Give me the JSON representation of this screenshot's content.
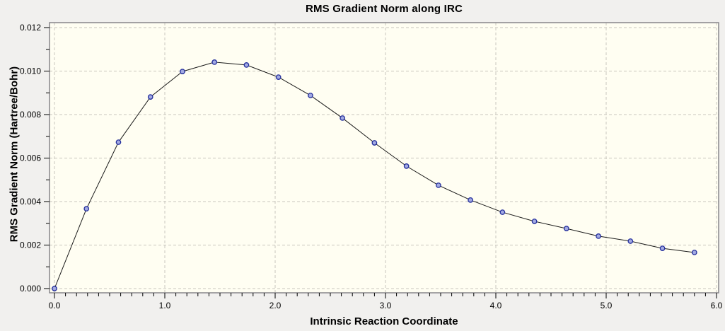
{
  "window": {
    "background": "#F1F0EE"
  },
  "chart_data": {
    "type": "line",
    "title": "RMS Gradient Norm along IRC",
    "xlabel": "Intrinsic Reaction Coordinate",
    "ylabel": "RMS Gradient Norm (Hartree/Bohr)",
    "legend": "none",
    "grid": "dashed-on-major-ticks",
    "marker": "circle",
    "xlim": [
      0.0,
      6.0
    ],
    "ylim": [
      0.0,
      0.012
    ],
    "x_tick_values": [
      0,
      1,
      2,
      3,
      4,
      5,
      6
    ],
    "x_tick_labels": [
      "0.0",
      "1.0",
      "2.0",
      "3.0",
      "4.0",
      "5.0",
      "6.0"
    ],
    "x_minor_tick_step": 0.1,
    "y_tick_values": [
      0,
      0.002,
      0.004,
      0.006,
      0.008,
      0.01,
      0.012
    ],
    "y_tick_labels": [
      "0.000",
      "0.002",
      "0.004",
      "0.006",
      "0.008",
      "0.010",
      "0.012"
    ],
    "y_minor_tick_step": 0.001,
    "series": [
      {
        "name": "RMS gradient norm",
        "x": [
          0.0,
          0.29,
          0.58,
          0.87,
          1.16,
          1.45,
          1.74,
          2.03,
          2.32,
          2.61,
          2.9,
          3.19,
          3.48,
          3.77,
          4.06,
          4.35,
          4.64,
          4.93,
          5.22,
          5.51,
          5.8
        ],
        "y": [
          0.0,
          0.00367,
          0.00673,
          0.00881,
          0.00998,
          0.01041,
          0.01028,
          0.00972,
          0.00888,
          0.00784,
          0.0067,
          0.00563,
          0.00475,
          0.00407,
          0.00351,
          0.00309,
          0.00276,
          0.00241,
          0.00218,
          0.00185,
          0.00166
        ]
      }
    ],
    "colors": {
      "outer_bg": "#F1F0EE",
      "plot_bg": "#FFFEF2",
      "grid": "#C8C6BD",
      "frame": "#87868A",
      "line": "#1A1A1A",
      "marker_fill": "#A3AAE2",
      "marker_edge": "#232E9C",
      "tick": "#000000",
      "text": "#000000"
    }
  }
}
